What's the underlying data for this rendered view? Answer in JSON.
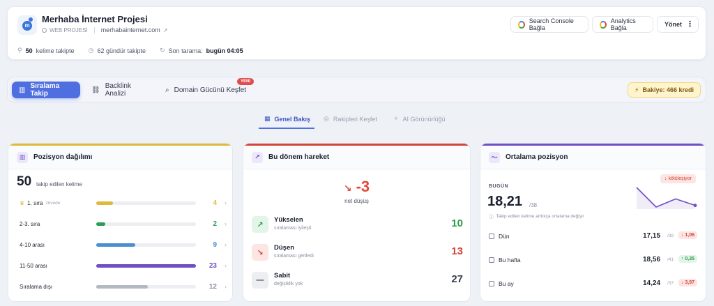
{
  "project": {
    "title": "Merhaba İnternet Projesi",
    "type_label": "WEB PROJESİ",
    "domain": "merhabainternet.com",
    "logo_letter": "m"
  },
  "header_buttons": {
    "search_console": "Search Console Bağla",
    "analytics": "Analytics Bağla",
    "manage": "Yönet"
  },
  "stats": {
    "keywords_count": "50",
    "keywords_label": "kelime takipte",
    "days_label": "62 gündür takipte",
    "scan_label": "Son tarama:",
    "scan_value": "bugün 04:05"
  },
  "tabs": [
    {
      "label": "Sıralama Takip",
      "active": true
    },
    {
      "label": "Backlink Analizi",
      "active": false
    },
    {
      "label": "Domain Gücünü Keşfet",
      "active": false
    }
  ],
  "new_badge": "YENİ",
  "balance": "Bakiye: 466 kredi",
  "subtabs": [
    {
      "label": "Genel Bakış",
      "active": true
    },
    {
      "label": "Rakipleri Keşfet",
      "active": false
    },
    {
      "label": "AI Görünürlüğü",
      "active": false
    }
  ],
  "distribution": {
    "title": "Pozisyon dağılımı",
    "total": "50",
    "total_label": "takip edilen kelime",
    "rows": [
      {
        "label": "1. sıra",
        "note": "zirvede",
        "value": "4",
        "fraction": 0.17,
        "color": "#e0b93a"
      },
      {
        "label": "2-3. sıra",
        "note": "",
        "value": "2",
        "fraction": 0.09,
        "color": "#2e9e55"
      },
      {
        "label": "4-10 arası",
        "note": "",
        "value": "9",
        "fraction": 0.39,
        "color": "#4a8fd0"
      },
      {
        "label": "11-50 arası",
        "note": "",
        "value": "23",
        "fraction": 1.0,
        "color": "#7050c4"
      },
      {
        "label": "Sıralama dışı",
        "note": "",
        "value": "12",
        "fraction": 0.52,
        "color": "#b4b8c2"
      }
    ]
  },
  "movement": {
    "title": "Bu dönem hareket",
    "net_value": "-3",
    "net_label": "net düşüş",
    "rows": [
      {
        "title": "Yükselen",
        "sub": "sıralaması iyileşti",
        "value": "10",
        "color": "#2d9a4c",
        "bg": "#e3f5e8",
        "icon": "↗"
      },
      {
        "title": "Düşen",
        "sub": "sıralaması geriledi",
        "value": "13",
        "color": "#d4443a",
        "bg": "#fde5e3",
        "icon": "↘"
      },
      {
        "title": "Sabit",
        "sub": "değişiklik yok",
        "value": "27",
        "color": "#3a3f4c",
        "bg": "#eceef2",
        "icon": "—"
      }
    ]
  },
  "average": {
    "title": "Ortalama pozisyon",
    "trend_badge": "↓ kötüleşiyor",
    "today_label": "BUGÜN",
    "today_value": "18,21",
    "today_of": "/38",
    "note": "Takip edilen kelime arttıkça ortalama değişir",
    "sparkline": [
      12,
      24,
      19,
      23
    ],
    "rows": [
      {
        "label": "Dün",
        "value": "17,15",
        "of": "/39",
        "delta": "↓ 1,06",
        "dir": "down"
      },
      {
        "label": "Bu hafta",
        "value": "18,56",
        "of": "/41",
        "delta": "↑ 0,35",
        "dir": "up"
      },
      {
        "label": "Bu ay",
        "value": "14,24",
        "of": "/37",
        "delta": "↓ 3,97",
        "dir": "down"
      }
    ]
  },
  "colors": {
    "accent": "#4f6fe0",
    "panel1_bar": "#e0b93a",
    "panel2_bar": "#d4443a",
    "panel3_bar": "#7050c4"
  }
}
